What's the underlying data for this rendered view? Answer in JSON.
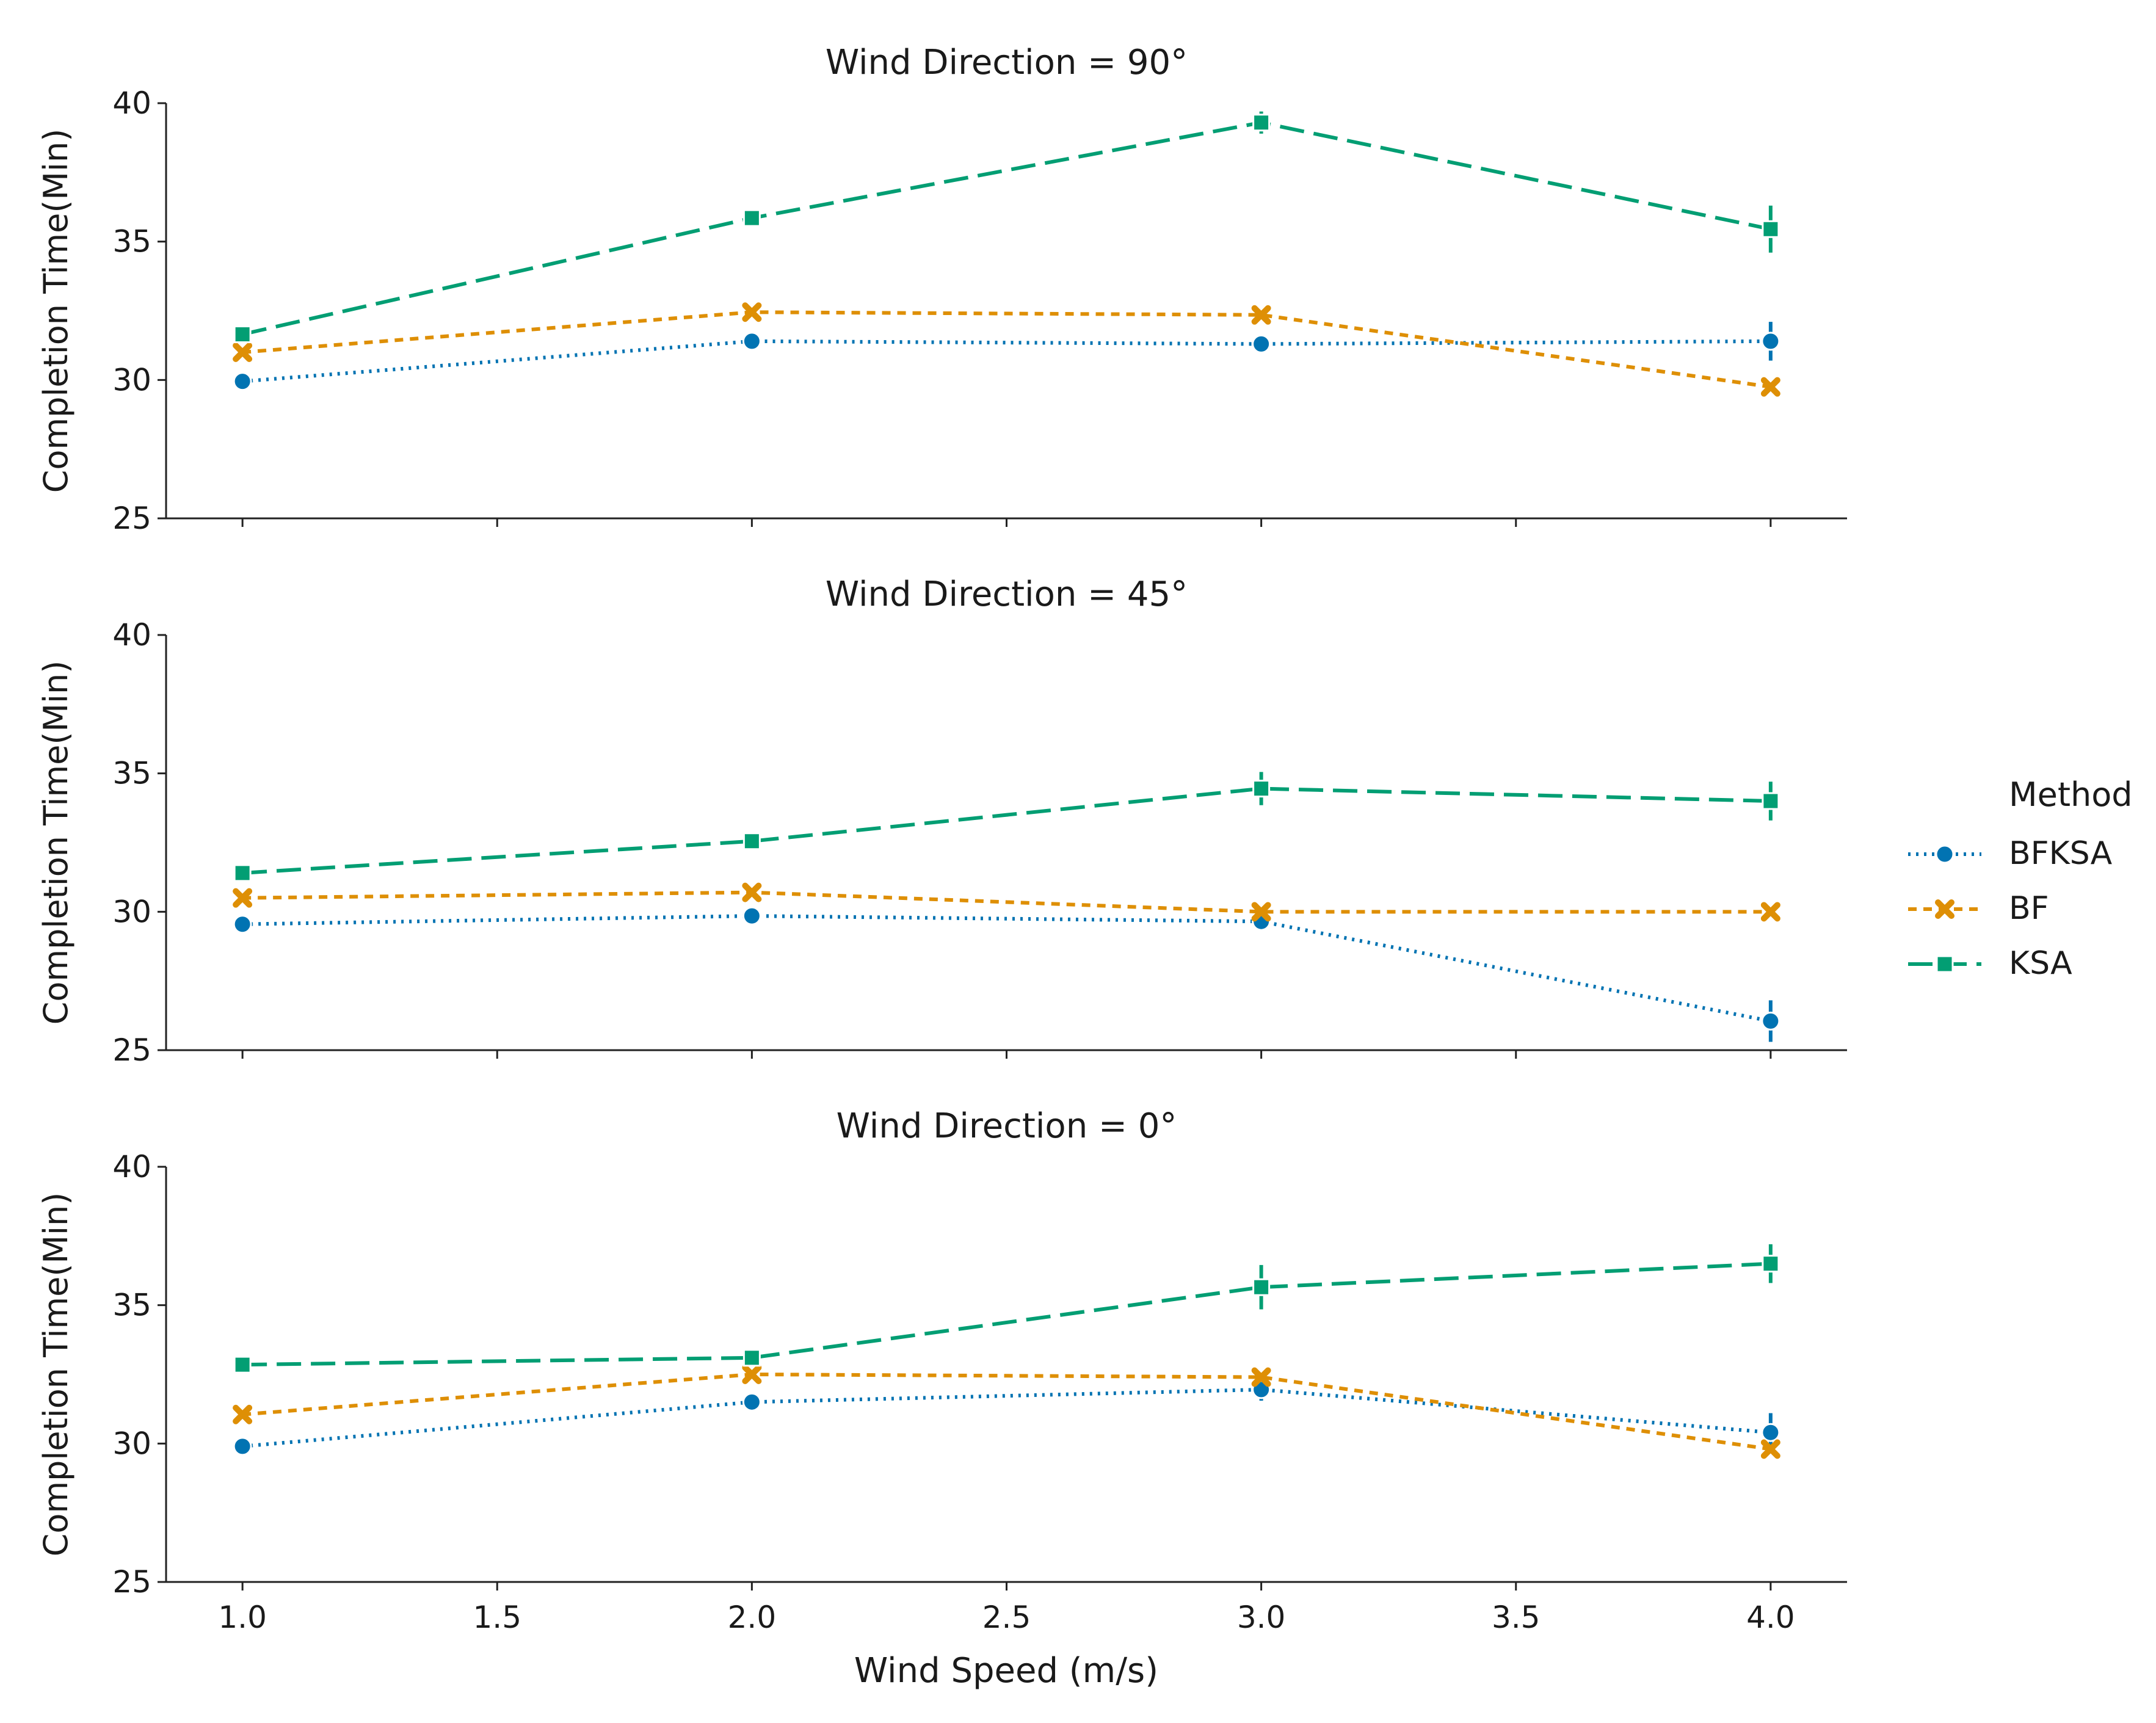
{
  "chart_data": {
    "type": "line",
    "xlabel": "Wind Speed (m/s)",
    "ylabel": "Completion Time(Min)",
    "xlim": [
      0.85,
      4.15
    ],
    "ylim": [
      25,
      40
    ],
    "x_ticks": [
      "1.0",
      "1.5",
      "2.0",
      "2.5",
      "3.0",
      "3.5",
      "4.0"
    ],
    "y_ticks": [
      "25",
      "30",
      "35",
      "40"
    ],
    "legend": {
      "title": "Method",
      "placement": "right",
      "entries": [
        "BFKSA",
        "BF",
        "KSA"
      ]
    },
    "series_styles": [
      {
        "name": "BFKSA",
        "color": "#0173b2",
        "marker": "circle",
        "dash": "dotted"
      },
      {
        "name": "BF",
        "color": "#de8f05",
        "marker": "x",
        "dash": "short-dash"
      },
      {
        "name": "KSA",
        "color": "#029e73",
        "marker": "square",
        "dash": "long-dash"
      }
    ],
    "panels": [
      {
        "title": "Wind Direction = 90°",
        "x": [
          1.0,
          2.0,
          3.0,
          4.0
        ],
        "series": [
          {
            "name": "BFKSA",
            "values": [
              29.95,
              31.4,
              31.3,
              31.4
            ],
            "err": [
              0.15,
              0.1,
              0.1,
              0.7
            ]
          },
          {
            "name": "BF",
            "values": [
              31.0,
              32.45,
              32.35,
              29.75
            ],
            "err": [
              0.1,
              0.1,
              0.1,
              0.15
            ]
          },
          {
            "name": "KSA",
            "values": [
              31.65,
              35.85,
              39.3,
              35.45
            ],
            "err": [
              0.1,
              0.1,
              0.4,
              0.85
            ]
          }
        ]
      },
      {
        "title": "Wind Direction = 45°",
        "x": [
          1.0,
          2.0,
          3.0,
          4.0
        ],
        "series": [
          {
            "name": "BFKSA",
            "values": [
              29.55,
              29.85,
              29.65,
              26.05
            ],
            "err": [
              0.1,
              0.1,
              0.1,
              0.75
            ]
          },
          {
            "name": "BF",
            "values": [
              30.5,
              30.7,
              30.0,
              30.0
            ],
            "err": [
              0.1,
              0.1,
              0.1,
              0.1
            ]
          },
          {
            "name": "KSA",
            "values": [
              31.4,
              32.55,
              34.45,
              34.0
            ],
            "err": [
              0.1,
              0.1,
              0.6,
              0.7
            ]
          }
        ]
      },
      {
        "title": "Wind Direction = 0°",
        "x": [
          1.0,
          2.0,
          3.0,
          4.0
        ],
        "series": [
          {
            "name": "BFKSA",
            "values": [
              29.9,
              31.5,
              31.95,
              30.4
            ],
            "err": [
              0.1,
              0.1,
              0.4,
              0.7
            ]
          },
          {
            "name": "BF",
            "values": [
              31.05,
              32.5,
              32.4,
              29.8
            ],
            "err": [
              0.1,
              0.1,
              0.1,
              0.1
            ]
          },
          {
            "name": "KSA",
            "values": [
              32.85,
              33.1,
              35.65,
              36.5
            ],
            "err": [
              0.1,
              0.1,
              0.8,
              0.7
            ]
          }
        ]
      }
    ]
  }
}
